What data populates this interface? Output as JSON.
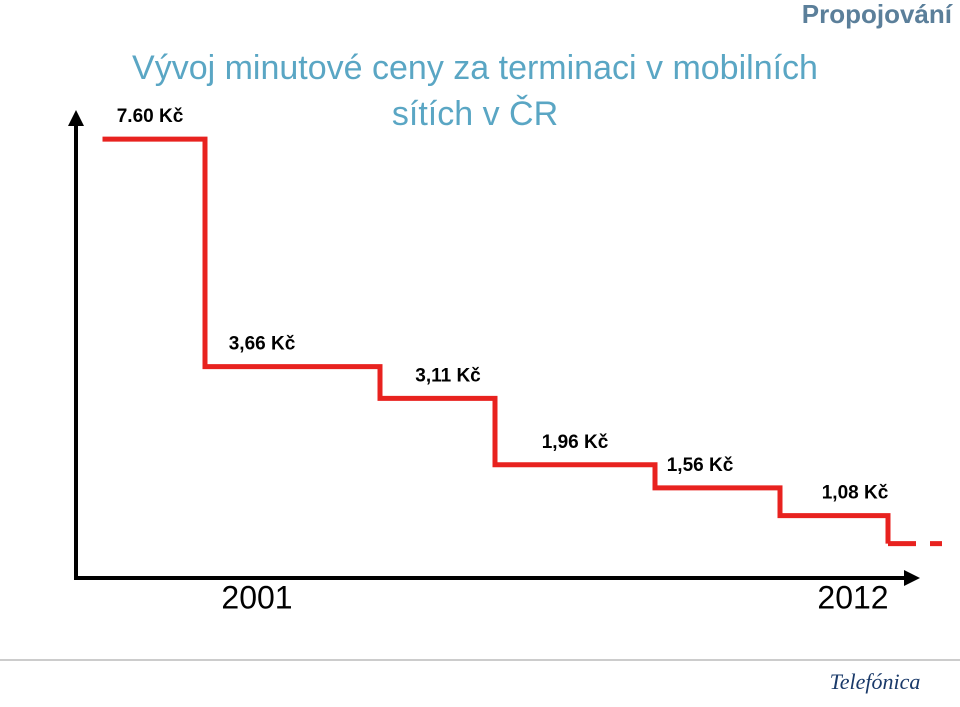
{
  "header": "Propojování",
  "chart_data": {
    "type": "step",
    "title": [
      "Vývoj minutové ceny za terminaci v mobilních",
      "sítích v ČR"
    ],
    "x_labels": [
      "2001",
      "2012"
    ],
    "values": [
      7.6,
      3.66,
      3.11,
      1.96,
      1.56,
      1.08
    ],
    "value_labels": [
      "7.60 Kč",
      "3,66 Kč",
      "3,11 Kč",
      "1,96 Kč",
      "1,56 Kč",
      "1,08 Kč"
    ],
    "ylim": [
      0,
      8
    ],
    "color": "#e8221f"
  },
  "logo": "Telefónica"
}
